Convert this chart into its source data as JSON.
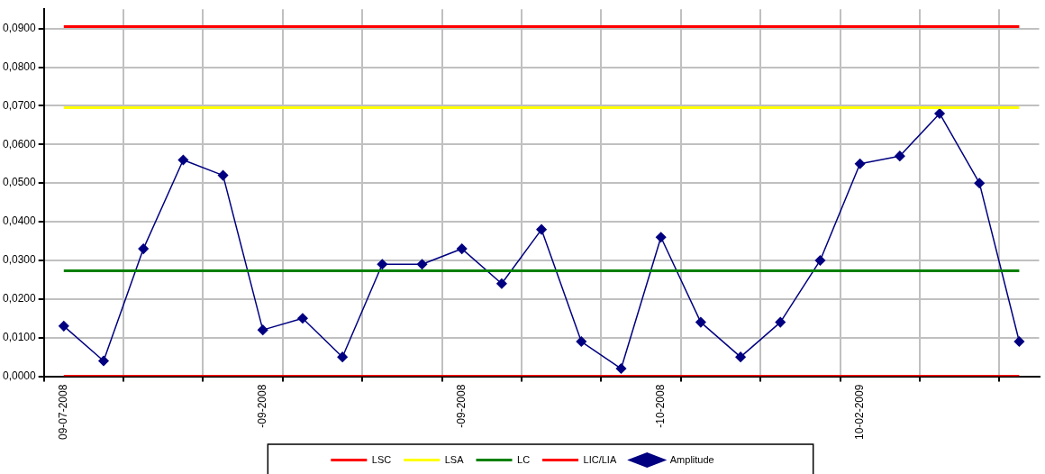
{
  "chart_data": {
    "type": "line",
    "categories": [
      "09-07-2008",
      null,
      null,
      null,
      null,
      "-09-2008",
      null,
      null,
      null,
      null,
      "-09-2008",
      null,
      null,
      null,
      null,
      "-10-2008",
      null,
      null,
      null,
      null,
      "10-02-2009",
      null,
      null,
      null,
      null
    ],
    "series": [
      {
        "name": "LSC",
        "color": "#ff0000",
        "marker": "none",
        "values": [
          0.0905,
          0.0905,
          0.0905,
          0.0905,
          0.0905,
          0.0905,
          0.0905,
          0.0905,
          0.0905,
          0.0905,
          0.0905,
          0.0905,
          0.0905,
          0.0905,
          0.0905,
          0.0905,
          0.0905,
          0.0905,
          0.0905,
          0.0905,
          0.0905,
          0.0905,
          0.0905,
          0.0905,
          0.0905
        ]
      },
      {
        "name": "LSA",
        "color": "#ffff00",
        "marker": "none",
        "values": [
          0.0695,
          0.0695,
          0.0695,
          0.0695,
          0.0695,
          0.0695,
          0.0695,
          0.0695,
          0.0695,
          0.0695,
          0.0695,
          0.0695,
          0.0695,
          0.0695,
          0.0695,
          0.0695,
          0.0695,
          0.0695,
          0.0695,
          0.0695,
          0.0695,
          0.0695,
          0.0695,
          0.0695,
          0.0695
        ]
      },
      {
        "name": "LC",
        "color": "#008000",
        "marker": "none",
        "values": [
          0.0273,
          0.0273,
          0.0273,
          0.0273,
          0.0273,
          0.0273,
          0.0273,
          0.0273,
          0.0273,
          0.0273,
          0.0273,
          0.0273,
          0.0273,
          0.0273,
          0.0273,
          0.0273,
          0.0273,
          0.0273,
          0.0273,
          0.0273,
          0.0273,
          0.0273,
          0.0273,
          0.0273,
          0.0273
        ]
      },
      {
        "name": "LIC/LIA",
        "color": "#ff0000",
        "marker": "none",
        "values": [
          0,
          0,
          0,
          0,
          0,
          0,
          0,
          0,
          0,
          0,
          0,
          0,
          0,
          0,
          0,
          0,
          0,
          0,
          0,
          0,
          0,
          0,
          0,
          0,
          0
        ]
      },
      {
        "name": "Amplitude",
        "color": "#000080",
        "values": [
          0.013,
          0.004,
          0.033,
          0.056,
          0.052,
          0.012,
          0.015,
          0.005,
          0.029,
          0.029,
          0.033,
          0.024,
          0.038,
          0.009,
          0.002,
          0.036,
          0.014,
          0.005,
          0.014,
          0.03,
          0.055,
          0.057,
          0.068,
          0.05,
          0.009
        ]
      }
    ],
    "ylim": [
      0,
      0.095
    ],
    "yticks": [
      {
        "value": 0,
        "label": "0,0000"
      },
      {
        "value": 0.01,
        "label": "0,0100"
      },
      {
        "value": 0.02,
        "label": "0,0200"
      },
      {
        "value": 0.03,
        "label": "0,0300"
      },
      {
        "value": 0.04,
        "label": "0,0400"
      },
      {
        "value": 0.05,
        "label": "0,0500"
      },
      {
        "value": 0.06,
        "label": "0,0600"
      },
      {
        "value": 0.07,
        "label": "0,0700"
      },
      {
        "value": 0.08,
        "label": "0,0800"
      },
      {
        "value": 0.09,
        "label": "0,0900"
      }
    ],
    "grid": true,
    "legend": "bottom",
    "marker": "diamond",
    "line_style": "solid"
  }
}
